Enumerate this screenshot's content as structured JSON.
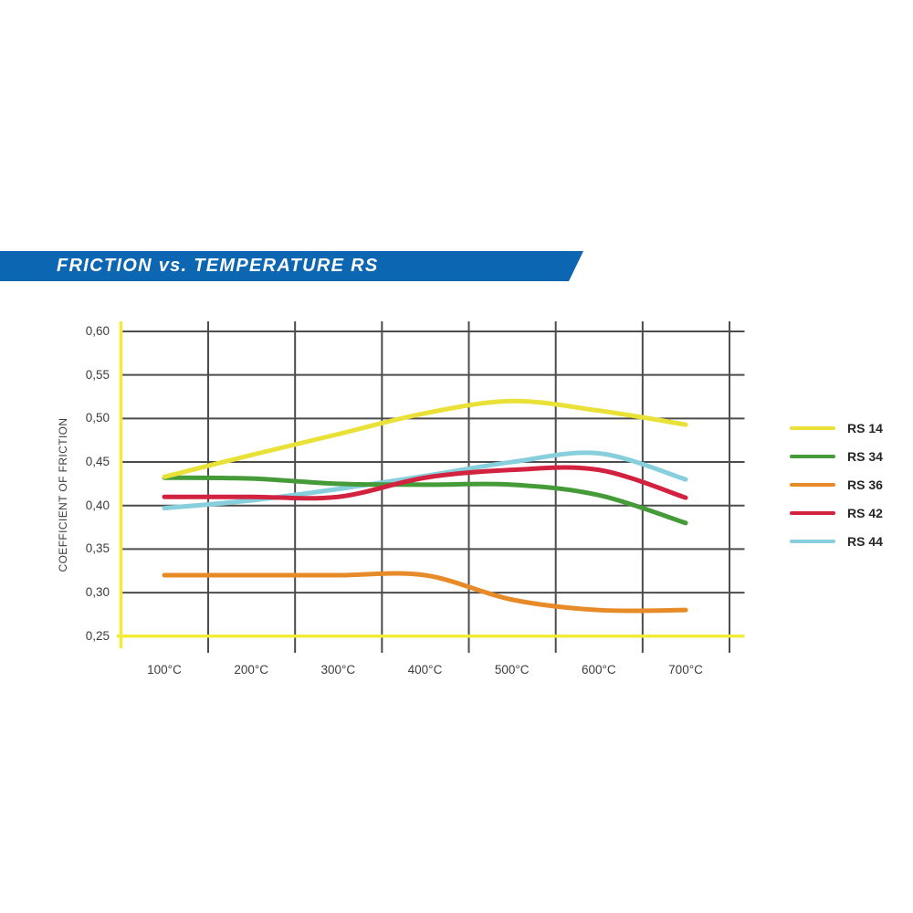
{
  "header": {
    "title": "FRICTION vs. TEMPERATURE RS",
    "banner_color": "#0d66b1"
  },
  "chart_data": {
    "type": "line",
    "title": "FRICTION vs. TEMPERATURE RS",
    "xlabel": "",
    "ylabel": "COEFFICIENT OF FRICTION",
    "categories": [
      "100°C",
      "200°C",
      "300°C",
      "400°C",
      "500°C",
      "600°C",
      "700°C"
    ],
    "x_values_celsius": [
      100,
      200,
      300,
      400,
      500,
      600,
      700
    ],
    "ylim": [
      0.25,
      0.6
    ],
    "ytick_values": [
      0.6,
      0.55,
      0.5,
      0.45,
      0.4,
      0.35,
      0.3,
      0.25
    ],
    "ytick_labels": [
      "0,60",
      "0,55",
      "0,50",
      "0,45",
      "0,40",
      "0,35",
      "0,30",
      "0,25"
    ],
    "grid": true,
    "legend_position": "right",
    "axis_color": "#f2ec38",
    "grid_color": "#4c4c4c",
    "series": [
      {
        "name": "RS 14",
        "color": "#eae138",
        "values": [
          0.433,
          0.458,
          0.482,
          0.506,
          0.52,
          0.509,
          0.493
        ]
      },
      {
        "name": "RS 34",
        "color": "#449b38",
        "values": [
          0.432,
          0.431,
          0.425,
          0.424,
          0.424,
          0.412,
          0.38
        ]
      },
      {
        "name": "RS 36",
        "color": "#e78b28",
        "values": [
          0.32,
          0.32,
          0.32,
          0.32,
          0.292,
          0.28,
          0.28
        ]
      },
      {
        "name": "RS 42",
        "color": "#d22240",
        "values": [
          0.41,
          0.41,
          0.41,
          0.432,
          0.441,
          0.441,
          0.409
        ]
      },
      {
        "name": "RS 44",
        "color": "#87cfdc",
        "values": [
          0.397,
          0.406,
          0.419,
          0.434,
          0.45,
          0.46,
          0.43
        ]
      }
    ]
  }
}
